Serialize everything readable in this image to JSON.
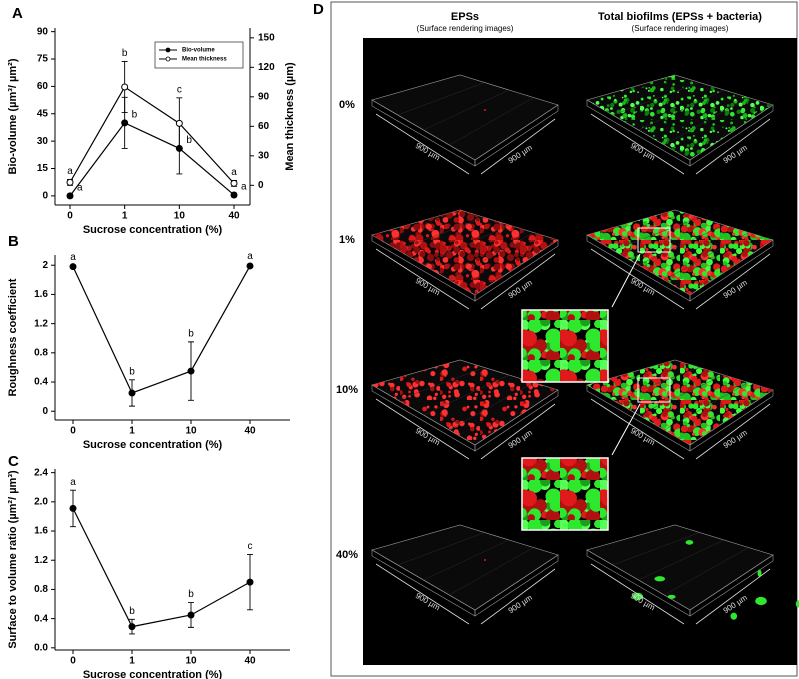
{
  "chart_data": [
    {
      "type": "line",
      "panel_label": "A",
      "xlabel": "Sucrose concentration (%)",
      "ylabel": "Bio-volume (µm³/ µm²)",
      "y2label": "Mean thickness (µm)",
      "categories": [
        "0",
        "1",
        "10",
        "40"
      ],
      "ylim": [
        -5,
        92
      ],
      "yticks": [
        0,
        15,
        30,
        45,
        60,
        75,
        90
      ],
      "y2lim": [
        -20,
        160
      ],
      "y2ticks": [
        0,
        30,
        60,
        90,
        120,
        150
      ],
      "legend": "upper right",
      "series": [
        {
          "name": "Bio-volume",
          "color": "#000000",
          "marker": "filled",
          "values": [
            0,
            40,
            26,
            0.5
          ],
          "errors": [
            1,
            14,
            14,
            1
          ],
          "letters": [
            "a",
            "b",
            "b",
            "a"
          ]
        },
        {
          "name": "Mean thickness",
          "color": "#000000",
          "marker": "open",
          "axis": "y2",
          "values": [
            3,
            100,
            63,
            2
          ],
          "errors": [
            3,
            26,
            26,
            3
          ],
          "letters": [
            "a",
            "b",
            "c",
            "a"
          ]
        }
      ]
    },
    {
      "type": "line",
      "panel_label": "B",
      "xlabel": "Sucrose concentration (%)",
      "ylabel": "Roughness coefficient",
      "categories": [
        "0",
        "1",
        "10",
        "40"
      ],
      "ylim": [
        -0.12,
        2.14
      ],
      "yticks": [
        0,
        0.4,
        0.8,
        1.2,
        1.6,
        2
      ],
      "series": [
        {
          "name": "Roughness coefficient",
          "color": "#000000",
          "marker": "filled",
          "values": [
            1.98,
            0.25,
            0.55,
            1.99
          ],
          "errors": [
            0.02,
            0.18,
            0.4,
            0.02
          ],
          "letters": [
            "a",
            "b",
            "b",
            "a"
          ]
        }
      ]
    },
    {
      "type": "line",
      "panel_label": "C",
      "xlabel": "Sucrose concentration (%)",
      "ylabel": "Surface to volume ratio (µm²/ µm³)",
      "categories": [
        "0",
        "1",
        "10",
        "40"
      ],
      "ylim": [
        -0.03,
        2.45
      ],
      "yticks": [
        {
          "value": 0,
          "label": "0.0"
        },
        0.4,
        0.8,
        1.2,
        1.6,
        {
          "value": 2,
          "label": "2.0"
        },
        2.4
      ],
      "series": [
        {
          "name": "Surface to volume ratio",
          "color": "#000000",
          "marker": "filled",
          "values": [
            1.91,
            0.29,
            0.45,
            0.9
          ],
          "errors": [
            0.25,
            0.1,
            0.17,
            0.38
          ],
          "letters": [
            "a",
            "b",
            "b",
            "c"
          ]
        }
      ]
    }
  ],
  "panel_d": {
    "panel_label": "D",
    "columns": [
      {
        "title": "EPSs",
        "subtitle": "(Surface rendering images)"
      },
      {
        "title": "Total biofilms (EPSs + bacteria)",
        "subtitle": "(Surface rendering images)"
      }
    ],
    "rows": [
      "0%",
      "1%",
      "10%",
      "40%"
    ],
    "scale_label": "900 µm"
  }
}
